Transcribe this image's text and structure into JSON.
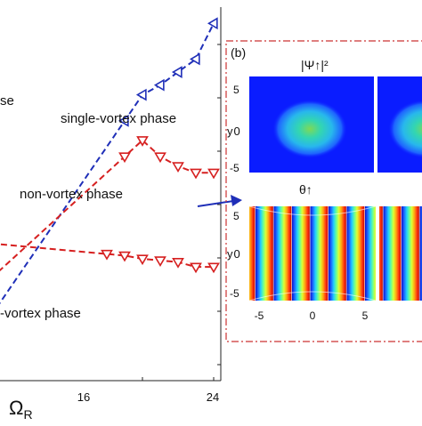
{
  "chart_data": [
    {
      "type": "line",
      "xlabel": "Ω",
      "xlabel_sub": "R",
      "x_ticks": [
        "16",
        "24"
      ],
      "xlim": [
        0,
        24
      ],
      "region_labels": {
        "top_partial": "se",
        "single": "single-vortex phase",
        "non": "non-vortex phase",
        "bottom_partial": "-vortex phase"
      },
      "series": [
        {
          "color": "#1f2fb8",
          "marker": "triangle-left",
          "x": [
            14,
            16,
            18,
            20,
            22,
            24
          ],
          "y": [
            0.4,
            0.56,
            0.62,
            0.7,
            0.78,
            1.0
          ]
        },
        {
          "color": "#d62020",
          "marker": "triangle-down",
          "x": [
            14,
            16,
            18,
            20,
            22,
            24
          ],
          "y": [
            0.18,
            0.28,
            0.18,
            0.12,
            0.08,
            0.08
          ]
        },
        {
          "color": "#d62020",
          "marker": "triangle-down",
          "x": [
            12,
            14,
            16,
            18,
            20,
            22,
            24
          ],
          "y": [
            -0.42,
            -0.43,
            -0.45,
            -0.46,
            -0.47,
            -0.5,
            -0.5
          ]
        }
      ],
      "ylim": [
        -1.2,
        1.1
      ]
    },
    {
      "type": "heatmap",
      "panel_label": "(b)",
      "density_title": "|Ψ↑|²",
      "phase_title": "θ↑",
      "y_axis_label": "y",
      "y_ticks": [
        "5",
        "0",
        "-5"
      ],
      "x_ticks": [
        "-5",
        "0",
        "5"
      ]
    }
  ]
}
